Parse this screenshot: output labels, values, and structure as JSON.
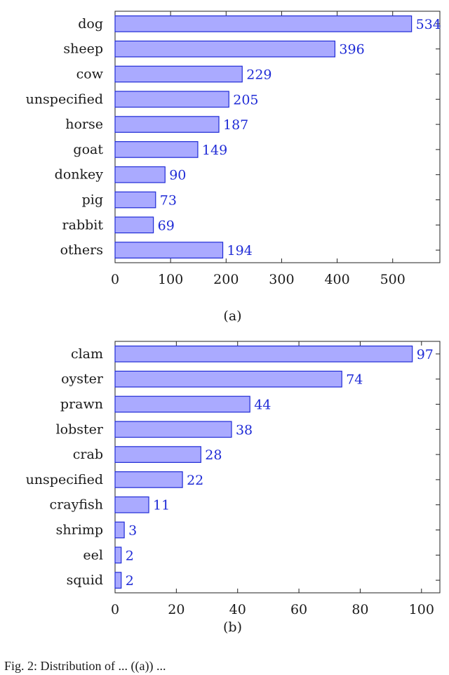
{
  "chart_data": [
    {
      "type": "bar",
      "orientation": "horizontal",
      "caption": "(a)",
      "categories": [
        "dog",
        "sheep",
        "cow",
        "unspecified",
        "horse",
        "goat",
        "donkey",
        "pig",
        "rabbit",
        "others"
      ],
      "values": [
        534,
        396,
        229,
        205,
        187,
        149,
        90,
        73,
        69,
        194
      ],
      "xticks": [
        0,
        100,
        200,
        300,
        400,
        500
      ],
      "xlim": [
        0,
        585
      ],
      "title": "",
      "xlabel": "",
      "ylabel": "",
      "grid": false,
      "legend": "none"
    },
    {
      "type": "bar",
      "orientation": "horizontal",
      "caption": "(b)",
      "categories": [
        "clam",
        "oyster",
        "prawn",
        "lobster",
        "crab",
        "unspecified",
        "crayfish",
        "shrimp",
        "eel",
        "squid"
      ],
      "values": [
        97,
        74,
        44,
        38,
        28,
        22,
        11,
        3,
        2,
        2
      ],
      "xticks": [
        0,
        20,
        40,
        60,
        80,
        100
      ],
      "xlim": [
        0,
        106
      ],
      "title": "",
      "xlabel": "",
      "ylabel": "",
      "grid": false,
      "legend": "none"
    }
  ],
  "colors": {
    "bar_fill": "#aaaaff",
    "bar_stroke": "#1f2bd6",
    "label": "#1f2bd6",
    "axis": "#222222"
  },
  "figure_caption": "Fig. 2: Distribution of ... ((a)) ..."
}
